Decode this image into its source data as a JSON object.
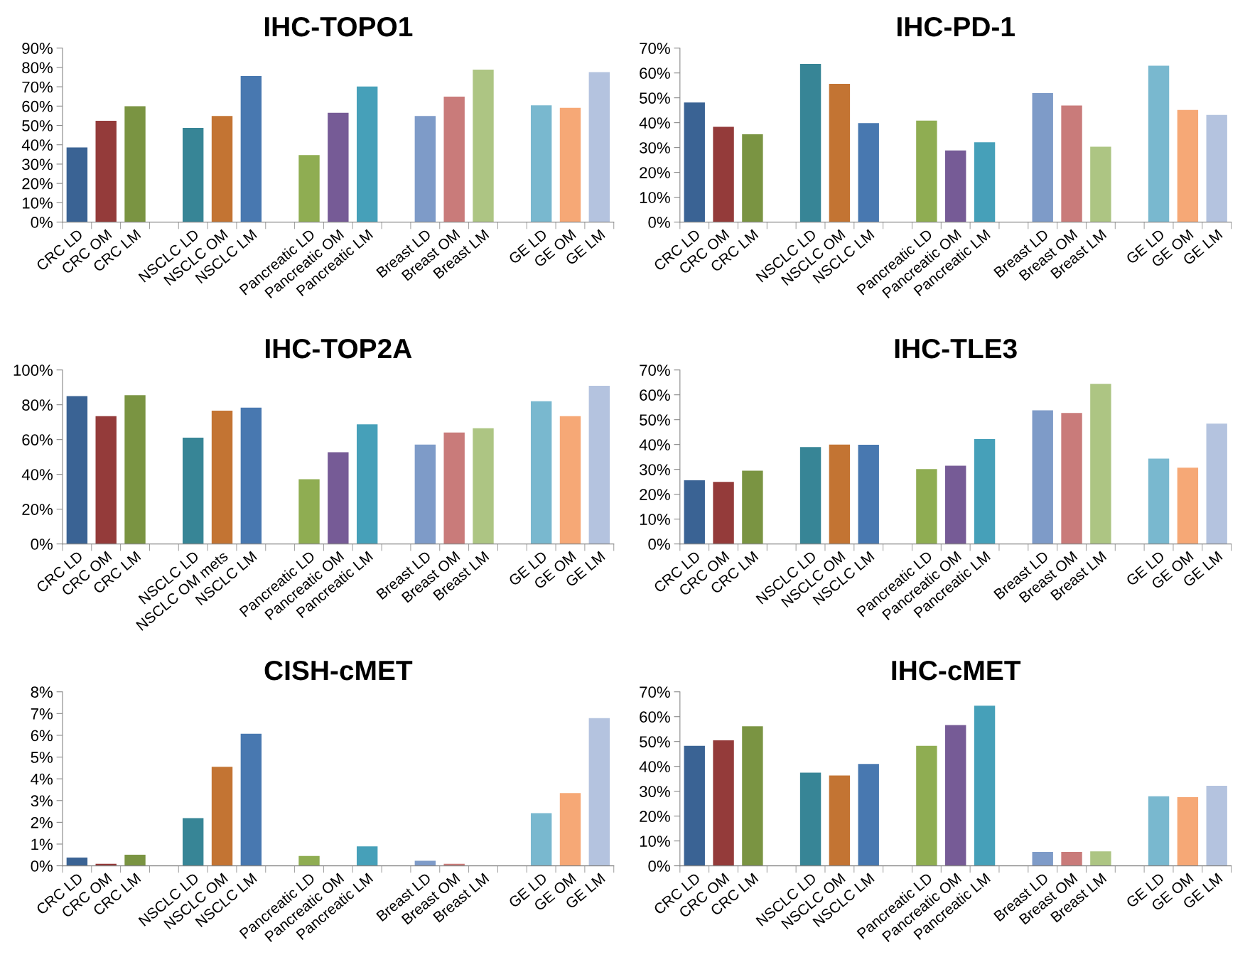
{
  "chart_data": [
    {
      "type": "bar",
      "title": "IHC-TOPO1",
      "categories": [
        "CRC LD",
        "CRC OM",
        "CRC LM",
        null,
        "NSCLC LD",
        "NSCLC OM",
        "NSCLC LM",
        null,
        "Pancreatic LD",
        "Pancreatic OM",
        "Pancreatic LM",
        null,
        "Breast LD",
        "Breast OM",
        "Breast LM",
        null,
        "GE LD",
        "GE OM",
        "GE LM"
      ],
      "values": [
        38.6,
        52.4,
        59.9,
        null,
        48.7,
        54.9,
        75.6,
        null,
        34.7,
        56.5,
        70.1,
        null,
        54.9,
        64.9,
        78.9,
        null,
        60.4,
        59.1,
        77.6
      ],
      "colors": [
        "#3a6394",
        "#943b3a",
        "#7a9442",
        null,
        "#378596",
        "#c37433",
        "#4878b0",
        null,
        "#8fad52",
        "#765b96",
        "#46a0b9",
        null,
        "#7e9bc8",
        "#c97b7a",
        "#adc583",
        null,
        "#79b8cf",
        "#f6a876",
        "#b4c3df"
      ],
      "ylim": [
        0,
        90
      ],
      "yticks": [
        {
          "value": 0,
          "label": "0%"
        },
        {
          "value": 10,
          "label": "10%"
        },
        {
          "value": 20,
          "label": "20%"
        },
        {
          "value": 30,
          "label": "30%"
        },
        {
          "value": 40,
          "label": "40%"
        },
        {
          "value": 50,
          "label": "50%"
        },
        {
          "value": 60,
          "label": "60%"
        },
        {
          "value": 70,
          "label": "70%"
        },
        {
          "value": 80,
          "label": "80%"
        },
        {
          "value": 90,
          "label": "90%"
        }
      ],
      "grid": false,
      "legend": false
    },
    {
      "type": "bar",
      "title": "IHC-PD-1",
      "categories": [
        "CRC LD",
        "CRC OM",
        "CRC LM",
        null,
        "NSCLC LD",
        "NSCLC OM",
        "NSCLC LM",
        null,
        "Pancreatic LD",
        "Pancreatic OM",
        "Pancreatic LM",
        null,
        "Breast LD",
        "Breast OM",
        "Breast LM",
        null,
        "GE LD",
        "GE OM",
        "GE LM"
      ],
      "values": [
        48.1,
        38.3,
        35.3,
        null,
        63.6,
        55.6,
        39.8,
        null,
        40.8,
        28.8,
        32.1,
        null,
        51.9,
        46.9,
        30.3,
        null,
        62.9,
        45.1,
        43.1
      ],
      "colors": [
        "#3a6394",
        "#943b3a",
        "#7a9442",
        null,
        "#378596",
        "#c37433",
        "#4878b0",
        null,
        "#8fad52",
        "#765b96",
        "#46a0b9",
        null,
        "#7e9bc8",
        "#c97b7a",
        "#adc583",
        null,
        "#79b8cf",
        "#f6a876",
        "#b4c3df"
      ],
      "ylim": [
        0,
        70
      ],
      "yticks": [
        {
          "value": 0,
          "label": "0%"
        },
        {
          "value": 10,
          "label": "10%"
        },
        {
          "value": 20,
          "label": "20%"
        },
        {
          "value": 30,
          "label": "30%"
        },
        {
          "value": 40,
          "label": "40%"
        },
        {
          "value": 50,
          "label": "50%"
        },
        {
          "value": 60,
          "label": "60%"
        },
        {
          "value": 70,
          "label": "70%"
        }
      ],
      "grid": false,
      "legend": false
    },
    {
      "type": "bar",
      "title": "IHC-TOP2A",
      "categories": [
        "CRC LD",
        "CRC OM",
        "CRC LM",
        null,
        "NSCLC LD",
        "NSCLC OM mets",
        "NSCLC LM",
        null,
        "Pancreatic LD",
        "Pancreatic OM",
        "Pancreatic LM",
        null,
        "Breast LD",
        "Breast OM",
        "Breast LM",
        null,
        "GE LD",
        "GE OM",
        "GE LM"
      ],
      "values": [
        85.0,
        73.4,
        85.5,
        null,
        61.1,
        76.6,
        78.3,
        null,
        37.2,
        52.7,
        68.7,
        null,
        57.1,
        64.0,
        66.5,
        null,
        82.0,
        73.4,
        90.9
      ],
      "colors": [
        "#3a6394",
        "#943b3a",
        "#7a9442",
        null,
        "#378596",
        "#c37433",
        "#4878b0",
        null,
        "#8fad52",
        "#765b96",
        "#46a0b9",
        null,
        "#7e9bc8",
        "#c97b7a",
        "#adc583",
        null,
        "#79b8cf",
        "#f6a876",
        "#b4c3df"
      ],
      "ylim": [
        0,
        100
      ],
      "yticks": [
        {
          "value": 0,
          "label": "0%"
        },
        {
          "value": 20,
          "label": "20%"
        },
        {
          "value": 40,
          "label": "40%"
        },
        {
          "value": 60,
          "label": "60%"
        },
        {
          "value": 80,
          "label": "80%"
        },
        {
          "value": 100,
          "label": "100%"
        }
      ],
      "grid": false,
      "legend": false
    },
    {
      "type": "bar",
      "title": "IHC-TLE3",
      "categories": [
        "CRC LD",
        "CRC OM",
        "CRC LM",
        null,
        "NSCLC LD",
        "NSCLC OM",
        "NSCLC LM",
        null,
        "Pancreatic LD",
        "Pancreatic OM",
        "Pancreatic LM",
        null,
        "Breast LD",
        "Breast OM",
        "Breast LM",
        null,
        "GE LD",
        "GE OM",
        "GE LM"
      ],
      "values": [
        25.6,
        25.0,
        29.5,
        null,
        39.0,
        40.0,
        39.9,
        null,
        30.1,
        31.5,
        42.2,
        null,
        53.8,
        52.7,
        64.4,
        null,
        34.3,
        30.7,
        48.4
      ],
      "colors": [
        "#3a6394",
        "#943b3a",
        "#7a9442",
        null,
        "#378596",
        "#c37433",
        "#4878b0",
        null,
        "#8fad52",
        "#765b96",
        "#46a0b9",
        null,
        "#7e9bc8",
        "#c97b7a",
        "#adc583",
        null,
        "#79b8cf",
        "#f6a876",
        "#b4c3df"
      ],
      "ylim": [
        0,
        70
      ],
      "yticks": [
        {
          "value": 0,
          "label": "0%"
        },
        {
          "value": 10,
          "label": "10%"
        },
        {
          "value": 20,
          "label": "20%"
        },
        {
          "value": 30,
          "label": "30%"
        },
        {
          "value": 40,
          "label": "40%"
        },
        {
          "value": 50,
          "label": "50%"
        },
        {
          "value": 60,
          "label": "60%"
        },
        {
          "value": 70,
          "label": "70%"
        }
      ],
      "grid": false,
      "legend": false
    },
    {
      "type": "bar",
      "title": "CISH-cMET",
      "categories": [
        "CRC LD",
        "CRC OM",
        "CRC LM",
        null,
        "NSCLC LD",
        "NSCLC OM",
        "NSCLC LM",
        null,
        "Pancreatic LD",
        "Pancreatic OM",
        "Pancreatic LM",
        null,
        "Breast LD",
        "Breast OM",
        "Breast LM",
        null,
        "GE LD",
        "GE OM",
        "GE LM"
      ],
      "values": [
        0.38,
        0.09,
        0.51,
        null,
        2.19,
        4.55,
        6.07,
        null,
        0.45,
        0,
        0.89,
        null,
        0.23,
        0.09,
        0,
        null,
        2.42,
        3.34,
        6.79
      ],
      "colors": [
        "#3a6394",
        "#943b3a",
        "#7a9442",
        null,
        "#378596",
        "#c37433",
        "#4878b0",
        null,
        "#8fad52",
        "#765b96",
        "#46a0b9",
        null,
        "#7e9bc8",
        "#c97b7a",
        "#adc583",
        null,
        "#79b8cf",
        "#f6a876",
        "#b4c3df"
      ],
      "ylim": [
        0,
        8
      ],
      "yticks": [
        {
          "value": 0,
          "label": "0%"
        },
        {
          "value": 1,
          "label": "1%"
        },
        {
          "value": 2,
          "label": "2%"
        },
        {
          "value": 3,
          "label": "3%"
        },
        {
          "value": 4,
          "label": "4%"
        },
        {
          "value": 5,
          "label": "5%"
        },
        {
          "value": 6,
          "label": "6%"
        },
        {
          "value": 7,
          "label": "7%"
        },
        {
          "value": 8,
          "label": "8%"
        }
      ],
      "grid": false,
      "legend": false
    },
    {
      "type": "bar",
      "title": "IHC-cMET",
      "categories": [
        "CRC LD",
        "CRC OM",
        "CRC LM",
        null,
        "NSCLC LD",
        "NSCLC OM",
        "NSCLC LM",
        null,
        "Pancreatic LD",
        "Pancreatic OM",
        "Pancreatic LM",
        null,
        "Breast LD",
        "Breast OM",
        "Breast LM",
        null,
        "GE LD",
        "GE OM",
        "GE LM"
      ],
      "values": [
        48.3,
        50.5,
        56.1,
        null,
        37.5,
        36.3,
        41.0,
        null,
        48.3,
        56.6,
        64.4,
        null,
        5.6,
        5.6,
        5.8,
        null,
        28.0,
        27.6,
        32.2
      ],
      "colors": [
        "#3a6394",
        "#943b3a",
        "#7a9442",
        null,
        "#378596",
        "#c37433",
        "#4878b0",
        null,
        "#8fad52",
        "#765b96",
        "#46a0b9",
        null,
        "#7e9bc8",
        "#c97b7a",
        "#adc583",
        null,
        "#79b8cf",
        "#f6a876",
        "#b4c3df"
      ],
      "ylim": [
        0,
        70
      ],
      "yticks": [
        {
          "value": 0,
          "label": "0%"
        },
        {
          "value": 10,
          "label": "10%"
        },
        {
          "value": 20,
          "label": "20%"
        },
        {
          "value": 30,
          "label": "30%"
        },
        {
          "value": 40,
          "label": "40%"
        },
        {
          "value": 50,
          "label": "50%"
        },
        {
          "value": 60,
          "label": "60%"
        },
        {
          "value": 70,
          "label": "70%"
        }
      ],
      "grid": false,
      "legend": false
    }
  ]
}
